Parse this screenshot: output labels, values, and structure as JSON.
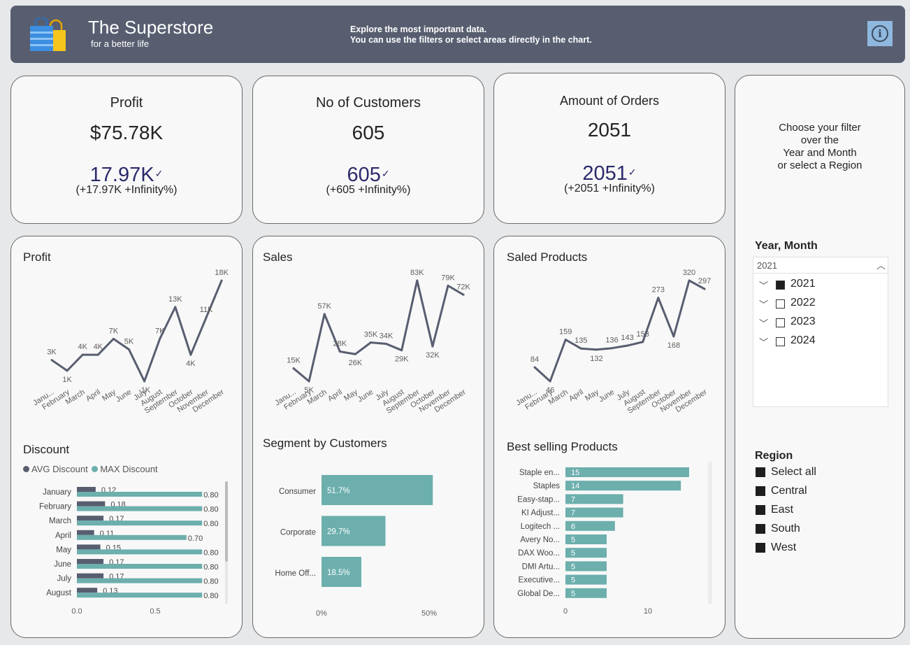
{
  "header": {
    "title": "The Superstore",
    "subtitle": "for a better life",
    "info_line1": "Explore the most important data.",
    "info_line2": "You can use the filters or select areas directly in the chart.",
    "info_icon": "i"
  },
  "kpis": [
    {
      "title": "Profit",
      "value": "$75.78K",
      "trend": "17.97K",
      "check": "✓",
      "delta": "(+17.97K +Infinity%)"
    },
    {
      "title": "No of Customers",
      "value": "605",
      "trend": "605",
      "check": "✓",
      "delta": "(+605 +Infinity%)"
    },
    {
      "title": "Amount of Orders",
      "value": "2051",
      "trend": "2051",
      "check": "✓",
      "delta": "(+2051 +Infinity%)"
    }
  ],
  "filters": {
    "intro_line1": "Choose your filter",
    "intro_line2": "over the",
    "intro_line3": "Year and Month",
    "intro_line4": "or select a Region",
    "year_title": "Year, Month",
    "year_selected": "2021",
    "chevron_up": "︿",
    "chevron_down": "﹀",
    "years": [
      "2021",
      "2022",
      "2023",
      "2024"
    ],
    "year_checked": [
      true,
      false,
      false,
      false
    ],
    "region_title": "Region",
    "regions": [
      "Select all",
      "Central",
      "East",
      "South",
      "West"
    ]
  },
  "colors": {
    "line": "#585e70",
    "bar": "#6cafad",
    "dark_bar": "#585e70",
    "header": "#585e70"
  },
  "chart_data": [
    {
      "type": "line",
      "title": "Profit",
      "categories": [
        "Janu...",
        "February",
        "March",
        "April",
        "May",
        "June",
        "July",
        "August",
        "September",
        "October",
        "November",
        "December"
      ],
      "values": [
        3,
        1,
        4,
        4,
        7,
        5,
        -1,
        7,
        13,
        4,
        11,
        18
      ],
      "labels": [
        "3K",
        "1K",
        "4K",
        "4K",
        "7K",
        "5K",
        "-1K",
        "7K",
        "13K",
        "4K",
        "11K",
        "18K"
      ],
      "ylim": [
        -1,
        18
      ]
    },
    {
      "type": "line",
      "title": "Sales",
      "categories": [
        "Janu...",
        "February",
        "March",
        "April",
        "May",
        "June",
        "July",
        "August",
        "September",
        "October",
        "November",
        "December"
      ],
      "values": [
        15,
        5,
        57,
        28,
        26,
        35,
        34,
        29,
        83,
        32,
        79,
        72
      ],
      "labels": [
        "15K",
        "5K",
        "57K",
        "28K",
        "26K",
        "35K",
        "34K",
        "29K",
        "83K",
        "32K",
        "79K",
        "72K"
      ],
      "ylim": [
        5,
        83
      ]
    },
    {
      "type": "line",
      "title": "Saled Products",
      "categories": [
        "Janu...",
        "February",
        "March",
        "April",
        "May",
        "June",
        "July",
        "August",
        "September",
        "October",
        "November",
        "December"
      ],
      "values": [
        84,
        46,
        159,
        135,
        132,
        136,
        143,
        153,
        273,
        168,
        320,
        297
      ],
      "labels": [
        "84",
        "46",
        "159",
        "135",
        "132",
        "136",
        "143",
        "153",
        "273",
        "168",
        "320",
        "297"
      ],
      "ylim": [
        46,
        320
      ]
    },
    {
      "type": "bar",
      "title": "Discount",
      "categories": [
        "January",
        "February",
        "March",
        "April",
        "May",
        "June",
        "July",
        "August"
      ],
      "series": [
        {
          "name": "AVG Discount",
          "values": [
            0.12,
            0.18,
            0.17,
            0.11,
            0.15,
            0.17,
            0.17,
            0.13
          ],
          "labels": [
            "0.12",
            "0.18",
            "0.17",
            "0.11",
            "0.15",
            "0.17",
            "0.17",
            "0.13"
          ]
        },
        {
          "name": "MAX Discount",
          "values": [
            0.8,
            0.8,
            0.8,
            0.7,
            0.8,
            0.8,
            0.8,
            0.8
          ],
          "labels": [
            "0.80",
            "0.80",
            "0.80",
            "0.70",
            "0.80",
            "0.80",
            "0.80",
            "0.80"
          ]
        }
      ],
      "ticks": [
        "0.0",
        "0.5"
      ],
      "xlim": [
        0,
        0.9
      ]
    },
    {
      "type": "bar",
      "title": "Segment by Customers",
      "categories": [
        "Consumer",
        "Corporate",
        "Home Off..."
      ],
      "values": [
        51.7,
        29.7,
        18.5
      ],
      "labels": [
        "51.7%",
        "29.7%",
        "18.5%"
      ],
      "ticks": [
        "0%",
        "50%"
      ],
      "xlim": [
        0,
        55
      ]
    },
    {
      "type": "bar",
      "title": "Best selling Products",
      "categories": [
        "Staple en...",
        "Staples",
        "Easy-stap...",
        "KI Adjust...",
        "Logitech ...",
        "Avery No...",
        "DAX Woo...",
        "DMI Artu...",
        "Executive...",
        "Global De..."
      ],
      "values": [
        15,
        14,
        7,
        7,
        6,
        5,
        5,
        5,
        5,
        5
      ],
      "labels": [
        "15",
        "14",
        "7",
        "7",
        "6",
        "5",
        "5",
        "5",
        "5",
        "5"
      ],
      "ticks": [
        "0",
        "10"
      ],
      "xlim": [
        0,
        17
      ]
    }
  ]
}
